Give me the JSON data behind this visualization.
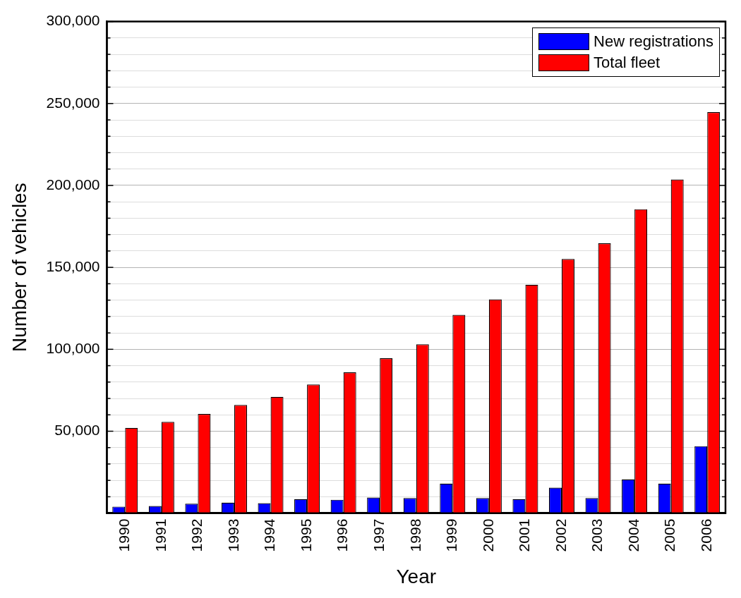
{
  "chart_data": {
    "type": "bar",
    "xlabel": "Year",
    "ylabel": "Number of vehicles",
    "categories": [
      "1990",
      "1991",
      "1992",
      "1993",
      "1994",
      "1995",
      "1996",
      "1997",
      "1998",
      "1999",
      "2000",
      "2001",
      "2002",
      "2003",
      "2004",
      "2005",
      "2006"
    ],
    "series": [
      {
        "name": "New registrations",
        "color": "#0000ff",
        "values": [
          4000,
          4400,
          5800,
          6400,
          6100,
          8600,
          8200,
          9500,
          9200,
          18000,
          9200,
          8600,
          15600,
          9200,
          20600,
          18000,
          40900
        ]
      },
      {
        "name": "Total fleet",
        "color": "#ff0000",
        "values": [
          52000,
          55700,
          60500,
          66000,
          71000,
          78500,
          85900,
          94500,
          103000,
          121000,
          130500,
          139400,
          155100,
          164700,
          185500,
          203600,
          244700
        ]
      }
    ],
    "ylim": [
      0,
      300000
    ],
    "yticks": [
      {
        "value": 0,
        "label": null
      },
      {
        "value": 10000,
        "label": null
      },
      {
        "value": 20000,
        "label": null
      },
      {
        "value": 30000,
        "label": null
      },
      {
        "value": 40000,
        "label": null
      },
      {
        "value": 50000,
        "label": "50,000"
      },
      {
        "value": 60000,
        "label": null
      },
      {
        "value": 70000,
        "label": null
      },
      {
        "value": 80000,
        "label": null
      },
      {
        "value": 90000,
        "label": null
      },
      {
        "value": 100000,
        "label": "100,000"
      },
      {
        "value": 110000,
        "label": null
      },
      {
        "value": 120000,
        "label": null
      },
      {
        "value": 130000,
        "label": null
      },
      {
        "value": 140000,
        "label": null
      },
      {
        "value": 150000,
        "label": "150,000"
      },
      {
        "value": 160000,
        "label": null
      },
      {
        "value": 170000,
        "label": null
      },
      {
        "value": 180000,
        "label": null
      },
      {
        "value": 190000,
        "label": null
      },
      {
        "value": 200000,
        "label": "200,000"
      },
      {
        "value": 210000,
        "label": null
      },
      {
        "value": 220000,
        "label": null
      },
      {
        "value": 230000,
        "label": null
      },
      {
        "value": 240000,
        "label": null
      },
      {
        "value": 250000,
        "label": "250,000"
      },
      {
        "value": 260000,
        "label": null
      },
      {
        "value": 270000,
        "label": null
      },
      {
        "value": 280000,
        "label": null
      },
      {
        "value": 290000,
        "label": null
      },
      {
        "value": 300000,
        "label": "300,000"
      }
    ],
    "grid": "y",
    "legend": "top right"
  }
}
